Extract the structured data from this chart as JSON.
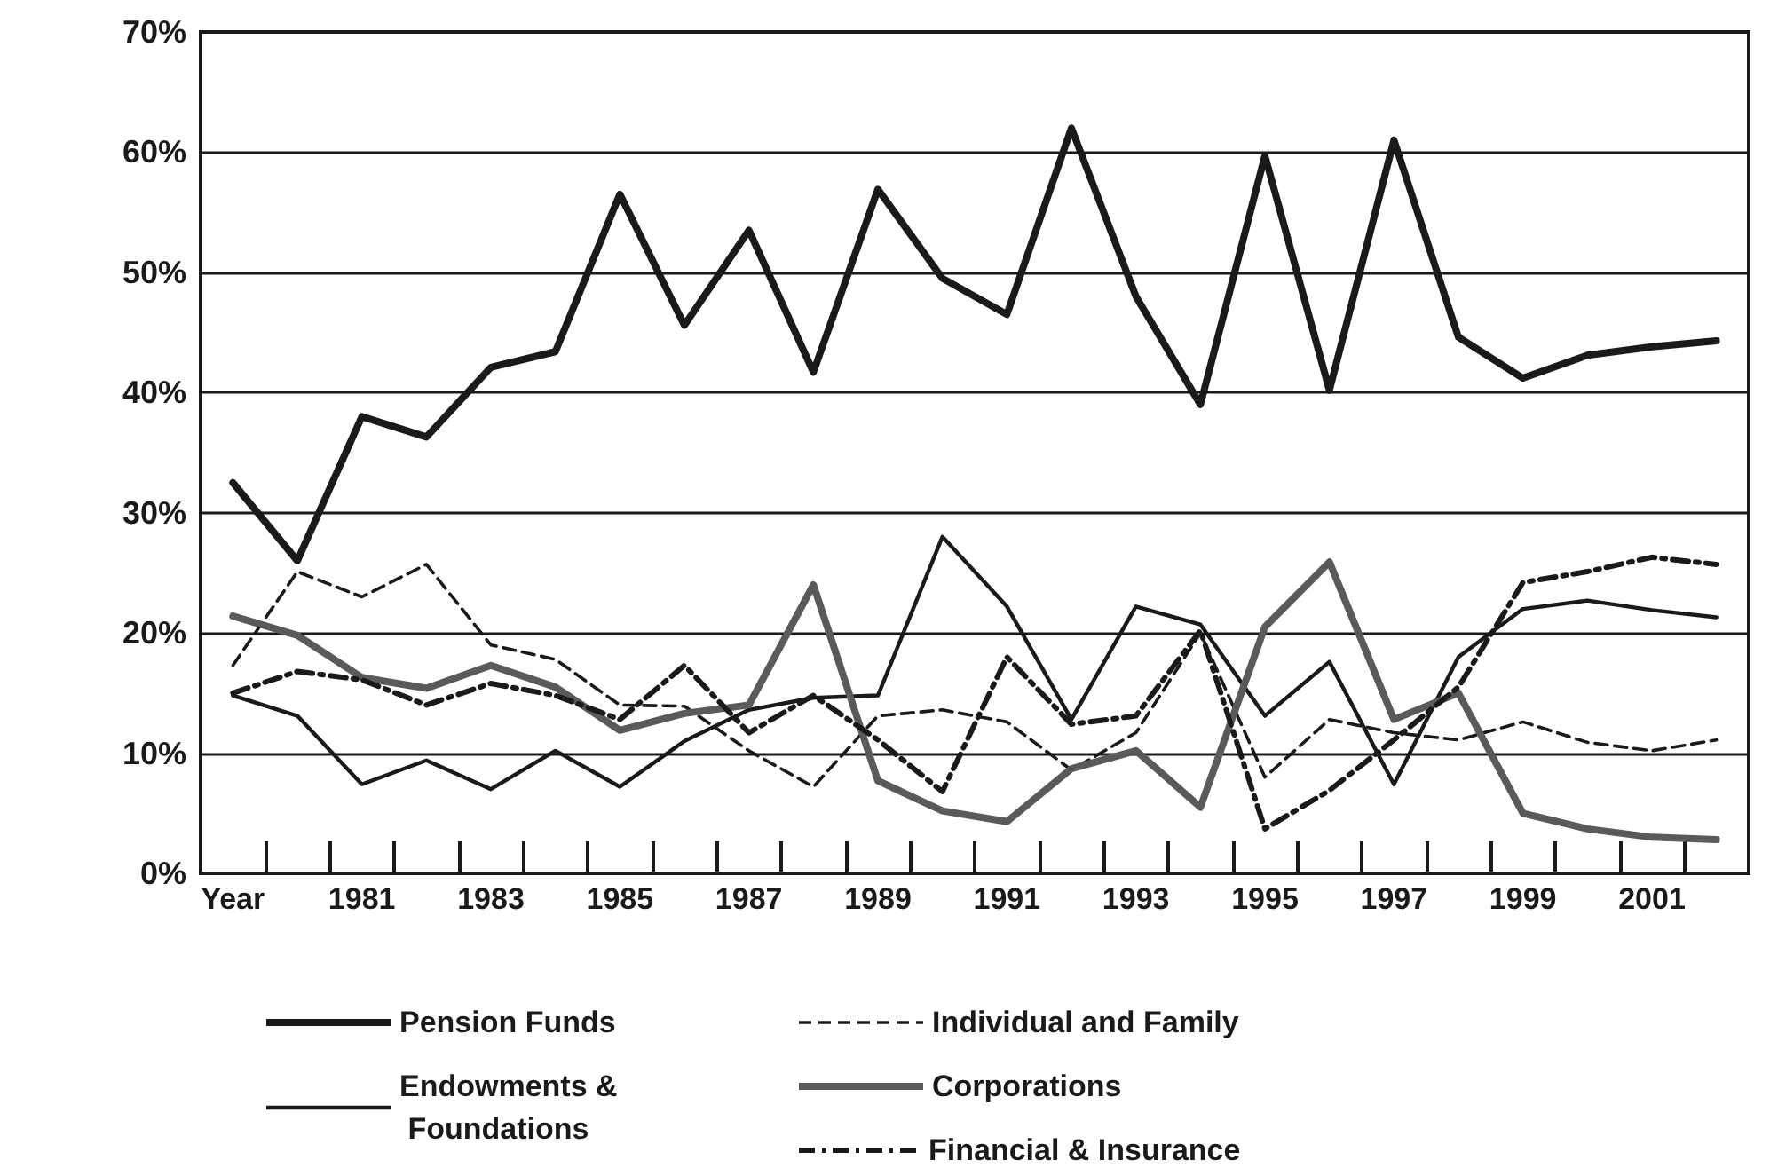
{
  "chart_data": {
    "type": "line",
    "categories": [
      "Year",
      null,
      "1981",
      null,
      "1983",
      null,
      "1985",
      null,
      "1987",
      null,
      "1989",
      null,
      "1991",
      null,
      "1993",
      null,
      "1995",
      null,
      "1997",
      null,
      "1999",
      null,
      "2001",
      null
    ],
    "series": [
      {
        "name": "Pension Funds",
        "color": "#1a1a1a",
        "line_style": "solid",
        "values": [
          32.5,
          26,
          38,
          36.3,
          42.1,
          43.4,
          56.5,
          45.6,
          53.5,
          41.7,
          56.9,
          49.5,
          46.5,
          62,
          48,
          39,
          59.7,
          40.2,
          61,
          44.6,
          41.2,
          43.1,
          43.8,
          44.3
        ]
      },
      {
        "name": "Endowments & Foundations",
        "color": "#1a1a1a",
        "line_style": "solid",
        "values": [
          14.8,
          13.1,
          7.4,
          9.4,
          7,
          10.2,
          7.2,
          11,
          13.6,
          14.6,
          14.8,
          28,
          22.2,
          12.8,
          22.2,
          20.7,
          13.1,
          17.6,
          7.4,
          18,
          22,
          22.7,
          21.9,
          21.3
        ]
      },
      {
        "name": "Individual and Family",
        "color": "#1a1a1a",
        "line_style": "dashed",
        "values": [
          17.3,
          25.1,
          23,
          25.7,
          19,
          17.8,
          14,
          13.9,
          10.2,
          7.2,
          13.1,
          13.6,
          12.6,
          8.6,
          11.7,
          20,
          8,
          12.8,
          11.7,
          11.1,
          12.6,
          10.9,
          10.2,
          11.1
        ]
      },
      {
        "name": "Corporations",
        "color": "#5a5a5a",
        "line_style": "solid",
        "values": [
          21.4,
          19.8,
          16.3,
          15.4,
          17.3,
          15.5,
          11.9,
          13.3,
          14,
          24,
          7.7,
          5.2,
          4.3,
          8.7,
          10.2,
          5.5,
          20.5,
          25.9,
          12.8,
          15,
          5,
          3.7,
          3,
          2.8
        ]
      },
      {
        "name": "Financial & Insurance",
        "color": "#1a1a1a",
        "line_style": "dashdot",
        "values": [
          15,
          16.8,
          16.1,
          14,
          15.8,
          14.8,
          12.8,
          17.3,
          11.7,
          14.8,
          11.1,
          6.8,
          18,
          12.4,
          13.1,
          20.2,
          3.7,
          6.9,
          11.1,
          15.5,
          24.2,
          25.1,
          26.3,
          25.7
        ]
      }
    ],
    "ylim": [
      0,
      70
    ],
    "yticks": [
      {
        "value": 0,
        "label": "0%"
      },
      {
        "value": 10,
        "label": "10%"
      },
      {
        "value": 20,
        "label": "20%"
      },
      {
        "value": 30,
        "label": "30%"
      },
      {
        "value": 40,
        "label": "40%"
      },
      {
        "value": 50,
        "label": "50%"
      },
      {
        "value": 60,
        "label": "60%"
      },
      {
        "value": 70,
        "label": "70%"
      }
    ],
    "grid": "y",
    "legend": "bottom",
    "marker": "none"
  }
}
